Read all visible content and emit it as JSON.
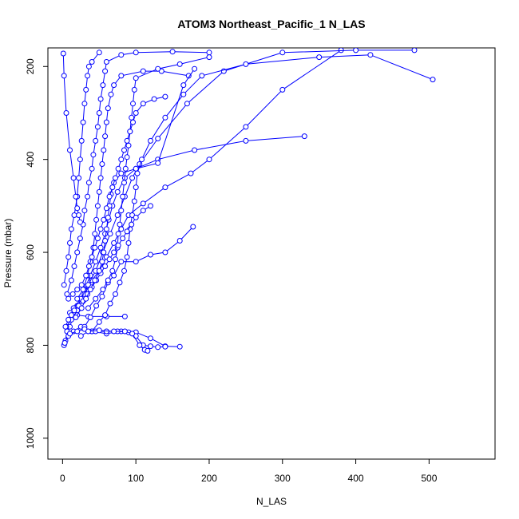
{
  "chart_data": {
    "type": "line",
    "title": "ATOM3 Northeast_Pacific_1 N_LAS",
    "xlabel": "N_LAS",
    "ylabel": "Pressure (mbar)",
    "xlim": [
      -20,
      590
    ],
    "ylim": [
      1045,
      160
    ],
    "y_reversed": true,
    "x_ticks": [
      0,
      100,
      200,
      300,
      400,
      500
    ],
    "y_ticks": [
      200,
      400,
      600,
      800,
      1000
    ],
    "grid": false,
    "legend": "none",
    "series_color": "#0000ff",
    "series": [
      {
        "points": [
          [
            2,
            800
          ],
          [
            4,
            790
          ],
          [
            6,
            770
          ],
          [
            10,
            760
          ],
          [
            14,
            740
          ],
          [
            20,
            725
          ],
          [
            25,
            700
          ],
          [
            30,
            680
          ],
          [
            38,
            650
          ],
          [
            45,
            620
          ],
          [
            52,
            590
          ],
          [
            58,
            560
          ],
          [
            63,
            530
          ],
          [
            68,
            500
          ],
          [
            75,
            470
          ],
          [
            85,
            440
          ],
          [
            100,
            420
          ],
          [
            130,
            400
          ],
          [
            180,
            380
          ],
          [
            250,
            360
          ],
          [
            330,
            350
          ]
        ]
      },
      {
        "points": [
          [
            3,
            795
          ],
          [
            8,
            780
          ],
          [
            15,
            770
          ],
          [
            25,
            760
          ],
          [
            40,
            770
          ],
          [
            60,
            775
          ],
          [
            80,
            770
          ],
          [
            100,
            772
          ],
          [
            120,
            785
          ],
          [
            140,
            802
          ],
          [
            160,
            803
          ]
        ]
      },
      {
        "points": [
          [
            5,
            760
          ],
          [
            12,
            745
          ],
          [
            20,
            735
          ],
          [
            35,
            738
          ],
          [
            60,
            738
          ],
          [
            85,
            738
          ]
        ]
      },
      {
        "points": [
          [
            10,
            730
          ],
          [
            20,
            715
          ],
          [
            30,
            690
          ],
          [
            40,
            660
          ],
          [
            50,
            640
          ],
          [
            60,
            610
          ],
          [
            70,
            580
          ],
          [
            80,
            550
          ],
          [
            90,
            520
          ],
          [
            110,
            495
          ],
          [
            140,
            460
          ],
          [
            175,
            430
          ],
          [
            200,
            400
          ],
          [
            250,
            330
          ],
          [
            300,
            250
          ],
          [
            380,
            165
          ]
        ]
      },
      {
        "points": [
          [
            15,
            720
          ],
          [
            25,
            700
          ],
          [
            35,
            670
          ],
          [
            45,
            640
          ],
          [
            55,
            600
          ],
          [
            65,
            560
          ],
          [
            75,
            520
          ],
          [
            85,
            480
          ],
          [
            95,
            440
          ],
          [
            105,
            410
          ],
          [
            130,
            355
          ],
          [
            170,
            280
          ],
          [
            220,
            210
          ],
          [
            300,
            170
          ],
          [
            400,
            165
          ],
          [
            480,
            165
          ]
        ]
      },
      {
        "points": [
          [
            2,
            670
          ],
          [
            5,
            640
          ],
          [
            8,
            610
          ],
          [
            10,
            580
          ],
          [
            12,
            550
          ],
          [
            16,
            520
          ],
          [
            20,
            480
          ],
          [
            22,
            440
          ],
          [
            24,
            400
          ],
          [
            26,
            360
          ],
          [
            28,
            320
          ],
          [
            30,
            280
          ],
          [
            32,
            250
          ],
          [
            34,
            220
          ],
          [
            36,
            200
          ],
          [
            40,
            190
          ],
          [
            50,
            170
          ]
        ]
      },
      {
        "points": [
          [
            30,
            760
          ],
          [
            38,
            740
          ],
          [
            46,
            715
          ],
          [
            54,
            695
          ],
          [
            62,
            665
          ],
          [
            70,
            650
          ],
          [
            80,
            620
          ],
          [
            100,
            620
          ],
          [
            120,
            605
          ],
          [
            140,
            600
          ],
          [
            160,
            575
          ],
          [
            178,
            545
          ]
        ]
      },
      {
        "points": [
          [
            40,
            770
          ],
          [
            50,
            750
          ],
          [
            58,
            735
          ],
          [
            65,
            710
          ],
          [
            72,
            690
          ],
          [
            78,
            665
          ],
          [
            84,
            640
          ],
          [
            88,
            610
          ],
          [
            90,
            580
          ],
          [
            92,
            550
          ],
          [
            95,
            520
          ],
          [
            98,
            490
          ],
          [
            100,
            460
          ],
          [
            102,
            430
          ],
          [
            108,
            400
          ],
          [
            120,
            360
          ],
          [
            140,
            310
          ],
          [
            165,
            260
          ],
          [
            190,
            220
          ],
          [
            250,
            195
          ],
          [
            350,
            180
          ],
          [
            420,
            175
          ],
          [
            505,
            228
          ]
        ]
      },
      {
        "points": [
          [
            10,
            775
          ],
          [
            20,
            770
          ],
          [
            30,
            765
          ],
          [
            45,
            770
          ],
          [
            60,
            770
          ],
          [
            75,
            770
          ],
          [
            90,
            772
          ],
          [
            100,
            780
          ],
          [
            110,
            800
          ],
          [
            120,
            802
          ],
          [
            130,
            804
          ],
          [
            140,
            803
          ]
        ]
      },
      {
        "points": [
          [
            20,
            700
          ],
          [
            28,
            680
          ],
          [
            34,
            650
          ],
          [
            38,
            620
          ],
          [
            42,
            590
          ],
          [
            44,
            560
          ],
          [
            46,
            530
          ],
          [
            48,
            500
          ],
          [
            50,
            470
          ],
          [
            52,
            440
          ],
          [
            54,
            410
          ],
          [
            56,
            380
          ],
          [
            58,
            350
          ],
          [
            60,
            320
          ],
          [
            62,
            290
          ],
          [
            66,
            260
          ],
          [
            70,
            240
          ],
          [
            80,
            220
          ],
          [
            110,
            210
          ],
          [
            135,
            210
          ],
          [
            172,
            220
          ]
        ]
      },
      {
        "points": [
          [
            25,
            780
          ],
          [
            35,
            770
          ],
          [
            50,
            768
          ],
          [
            70,
            770
          ],
          [
            85,
            770
          ],
          [
            95,
            775
          ],
          [
            105,
            800
          ],
          [
            112,
            810
          ],
          [
            116,
            812
          ]
        ]
      },
      {
        "points": [
          [
            6,
            690
          ],
          [
            12,
            660
          ],
          [
            16,
            630
          ],
          [
            20,
            600
          ],
          [
            24,
            570
          ],
          [
            28,
            540
          ],
          [
            30,
            510
          ],
          [
            34,
            480
          ],
          [
            36,
            450
          ],
          [
            40,
            420
          ],
          [
            42,
            390
          ],
          [
            45,
            360
          ],
          [
            48,
            330
          ],
          [
            50,
            300
          ],
          [
            52,
            270
          ],
          [
            55,
            240
          ],
          [
            58,
            210
          ],
          [
            60,
            190
          ],
          [
            80,
            175
          ],
          [
            100,
            170
          ],
          [
            150,
            168
          ],
          [
            200,
            170
          ]
        ]
      },
      {
        "points": [
          [
            35,
            720
          ],
          [
            45,
            700
          ],
          [
            55,
            680
          ],
          [
            62,
            660
          ],
          [
            68,
            640
          ],
          [
            72,
            615
          ],
          [
            75,
            590
          ],
          [
            76,
            560
          ],
          [
            78,
            540
          ],
          [
            80,
            510
          ],
          [
            82,
            480
          ],
          [
            84,
            450
          ],
          [
            86,
            420
          ],
          [
            88,
            395
          ],
          [
            90,
            370
          ],
          [
            92,
            340
          ],
          [
            94,
            310
          ],
          [
            96,
            280
          ],
          [
            98,
            250
          ],
          [
            100,
            225
          ],
          [
            130,
            205
          ],
          [
            160,
            195
          ],
          [
            200,
            180
          ]
        ]
      },
      {
        "points": [
          [
            4,
            760
          ],
          [
            8,
            745
          ],
          [
            12,
            735
          ],
          [
            16,
            725
          ],
          [
            22,
            715
          ],
          [
            28,
            705
          ],
          [
            34,
            690
          ],
          [
            40,
            675
          ],
          [
            46,
            660
          ],
          [
            52,
            645
          ],
          [
            58,
            630
          ],
          [
            64,
            615
          ],
          [
            70,
            600
          ],
          [
            76,
            585
          ],
          [
            82,
            570
          ],
          [
            88,
            555
          ],
          [
            94,
            540
          ],
          [
            100,
            525
          ],
          [
            110,
            510
          ],
          [
            120,
            500
          ]
        ]
      },
      {
        "points": [
          [
            18,
            740
          ],
          [
            26,
            720
          ],
          [
            32,
            700
          ],
          [
            38,
            680
          ],
          [
            44,
            660
          ],
          [
            50,
            640
          ],
          [
            54,
            620
          ],
          [
            56,
            600
          ],
          [
            58,
            575
          ],
          [
            60,
            550
          ],
          [
            62,
            525
          ],
          [
            64,
            500
          ],
          [
            66,
            475
          ],
          [
            70,
            450
          ],
          [
            80,
            430
          ],
          [
            100,
            420
          ],
          [
            130,
            408
          ],
          [
            165,
            240
          ],
          [
            180,
            205
          ]
        ]
      },
      {
        "points": [
          [
            1,
            172
          ],
          [
            2,
            220
          ],
          [
            5,
            300
          ],
          [
            10,
            380
          ],
          [
            15,
            440
          ],
          [
            18,
            480
          ],
          [
            20,
            505
          ],
          [
            22,
            520
          ],
          [
            24,
            535
          ]
        ]
      },
      {
        "points": [
          [
            8,
            700
          ],
          [
            14,
            690
          ],
          [
            20,
            680
          ],
          [
            26,
            670
          ],
          [
            32,
            650
          ],
          [
            36,
            630
          ],
          [
            40,
            610
          ],
          [
            44,
            590
          ],
          [
            48,
            570
          ],
          [
            52,
            550
          ],
          [
            56,
            530
          ],
          [
            60,
            505
          ],
          [
            64,
            480
          ],
          [
            68,
            460
          ],
          [
            72,
            440
          ],
          [
            76,
            420
          ],
          [
            80,
            400
          ],
          [
            84,
            380
          ],
          [
            88,
            360
          ],
          [
            92,
            340
          ],
          [
            96,
            320
          ],
          [
            100,
            300
          ],
          [
            110,
            280
          ],
          [
            125,
            270
          ],
          [
            140,
            265
          ]
        ]
      }
    ]
  }
}
